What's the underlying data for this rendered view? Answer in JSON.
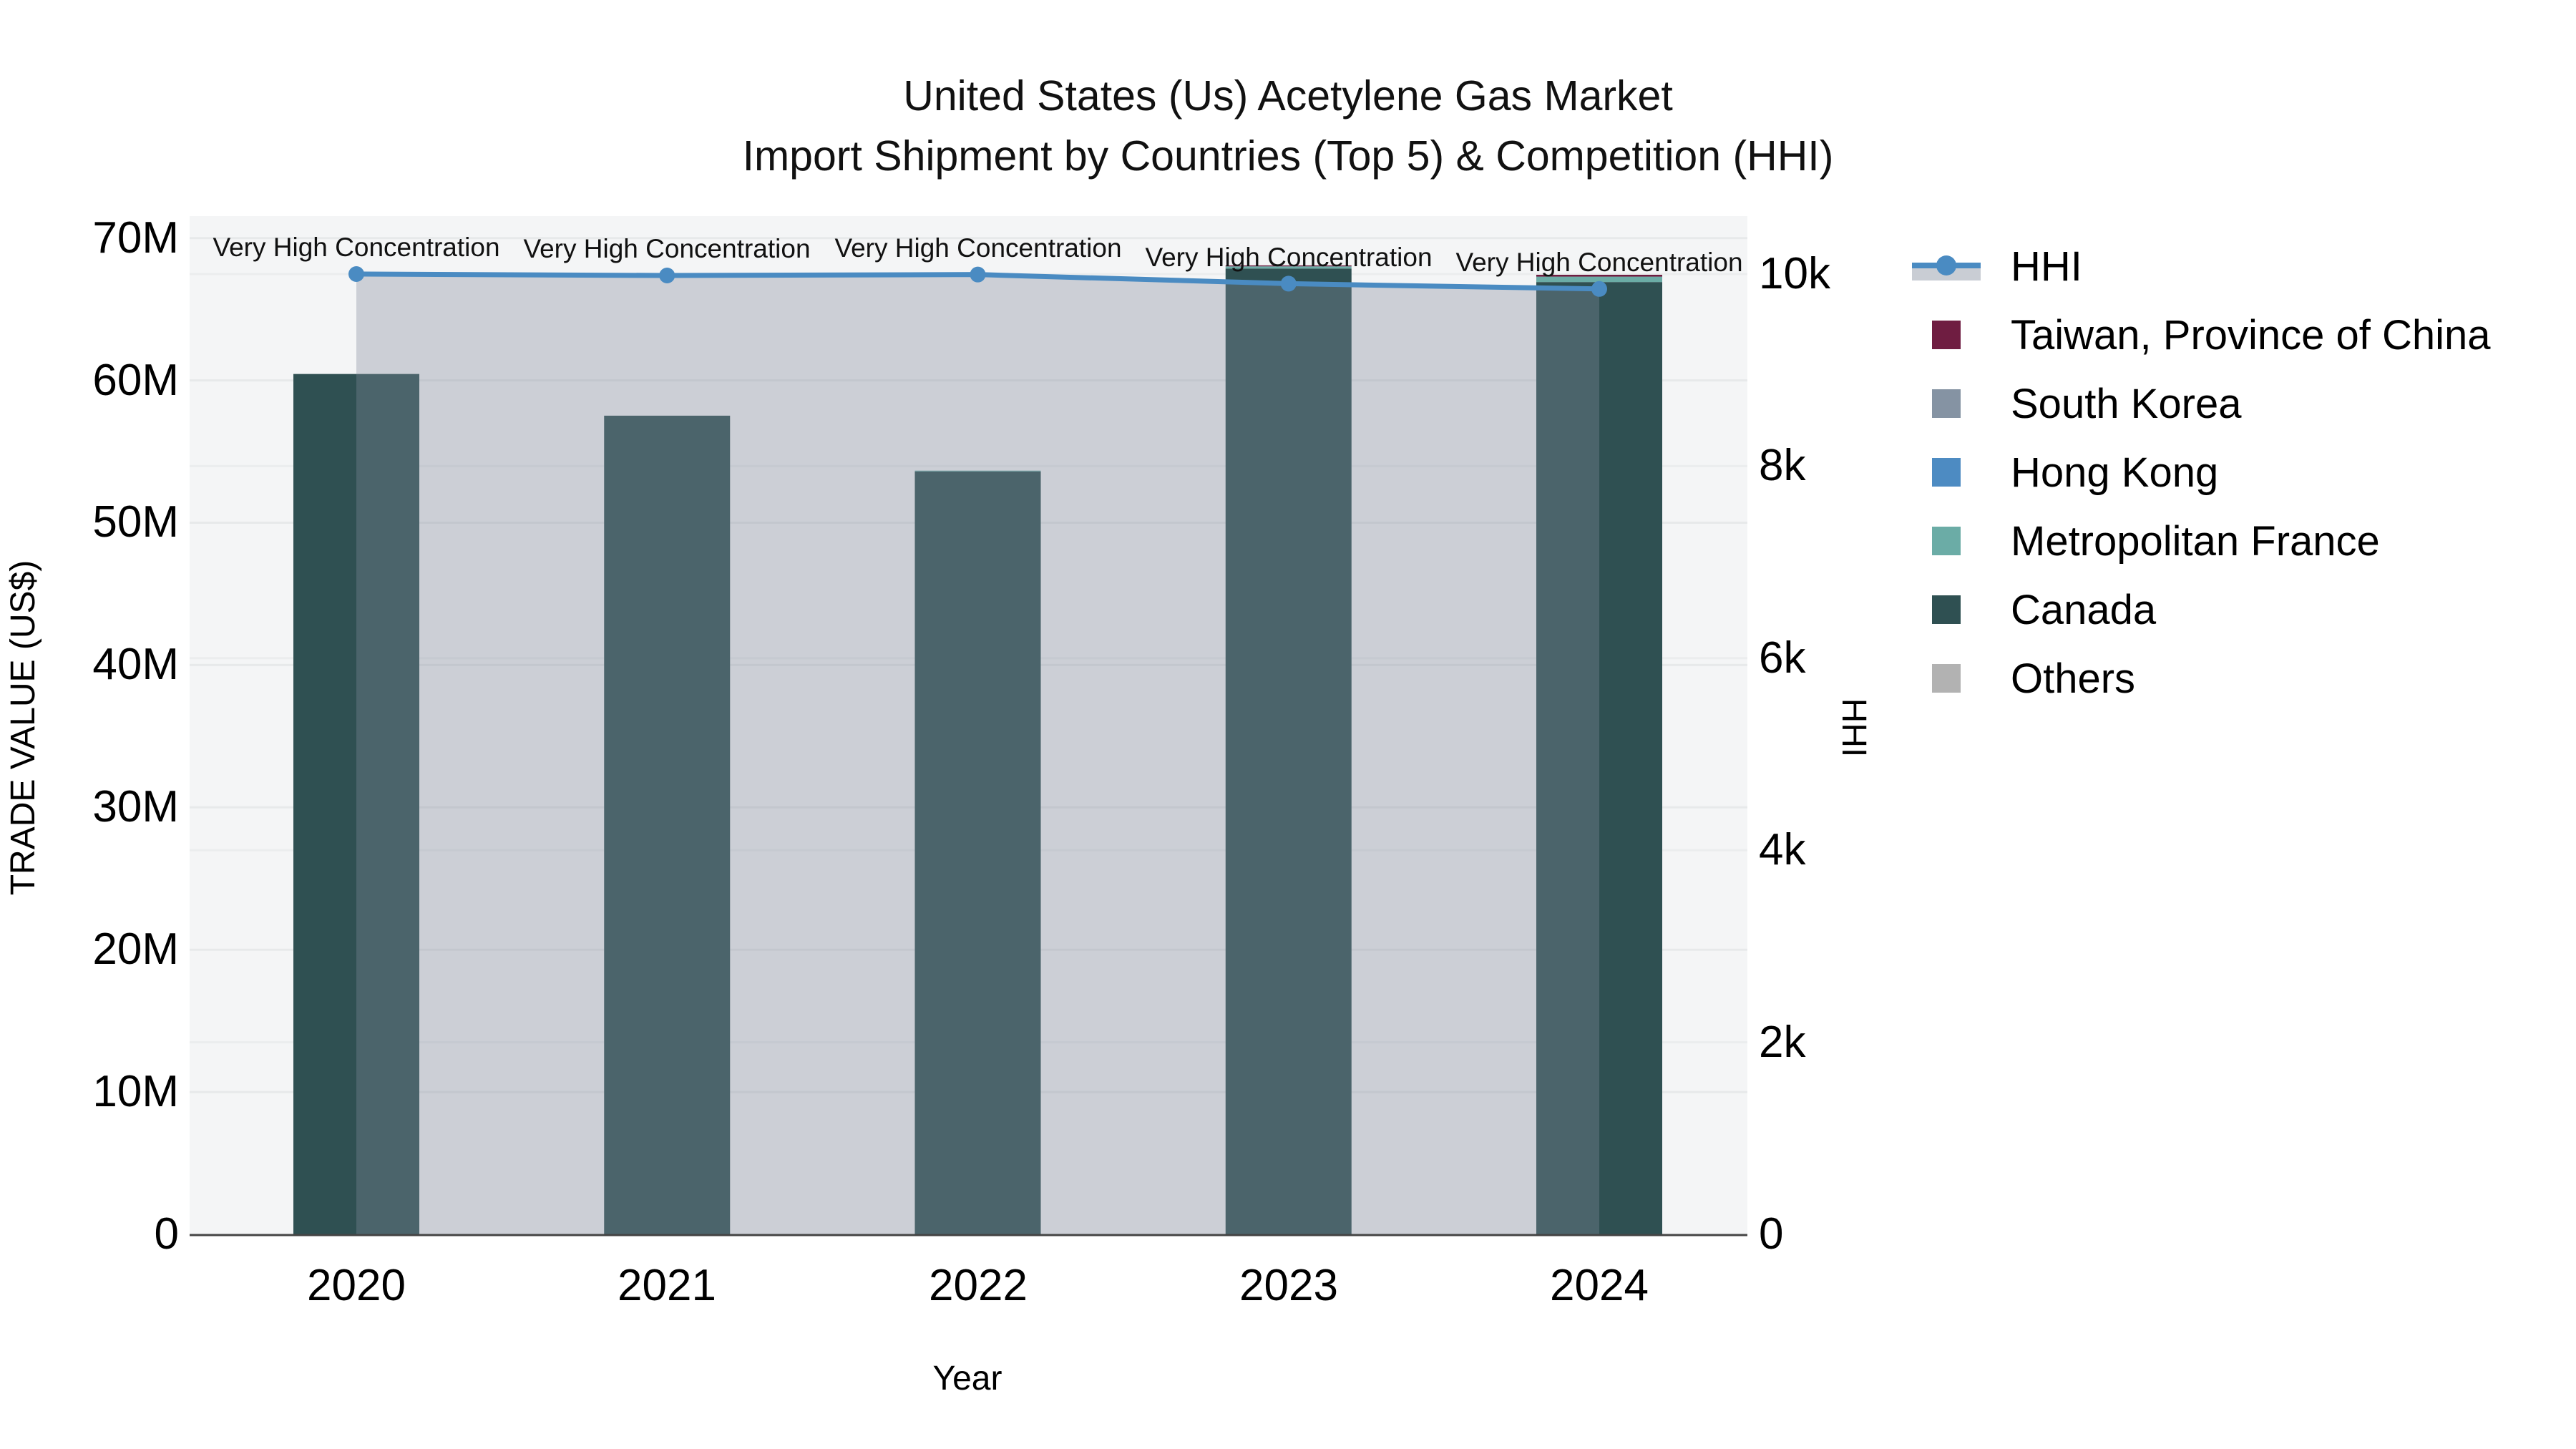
{
  "title": {
    "line1": "United States (Us) Acetylene Gas Market",
    "line2": "Import Shipment by Countries (Top 5) & Competition (HHI)"
  },
  "chart_data": {
    "type": "bar+line",
    "categories": [
      "2020",
      "2021",
      "2022",
      "2023",
      "2024"
    ],
    "xlabel": "Year",
    "ylabel_left": "TRADE VALUE (US$)",
    "ylabel_right": "HHI",
    "yaxis_left": {
      "tick_labels": [
        "0",
        "10M",
        "20M",
        "30M",
        "40M",
        "50M",
        "60M",
        "70M"
      ],
      "tick_values": [
        0,
        10000000,
        20000000,
        30000000,
        40000000,
        50000000,
        60000000,
        70000000
      ],
      "range": [
        0,
        71500000
      ]
    },
    "yaxis_right": {
      "tick_labels": [
        "0",
        "2k",
        "4k",
        "6k",
        "8k",
        "10k"
      ],
      "tick_values": [
        0,
        2000,
        4000,
        6000,
        8000,
        10000
      ],
      "range": [
        0,
        10600
      ]
    },
    "series": [
      {
        "name": "Taiwan, Province of China",
        "color": "#6F1D41",
        "values": [
          0,
          0,
          0,
          70000,
          130000
        ]
      },
      {
        "name": "South Korea",
        "color": "#8593A3",
        "values": [
          0,
          0,
          0,
          0,
          0
        ]
      },
      {
        "name": "Hong Kong",
        "color": "#4D8BC2",
        "values": [
          0,
          0,
          0,
          0,
          0
        ]
      },
      {
        "name": "Metropolitan France",
        "color": "#6BACA6",
        "values": [
          0,
          0,
          60000,
          150000,
          380000
        ]
      },
      {
        "name": "Canada",
        "color": "#2F5052",
        "values": [
          60450000,
          57520000,
          53600000,
          67860000,
          66910000
        ]
      },
      {
        "name": "Others",
        "color": "#B2B2B2",
        "values": [
          0,
          0,
          0,
          0,
          0
        ]
      }
    ],
    "hhi": {
      "name": "HHI",
      "color": "#4A8BC2",
      "fillcolor": "rgba(128,138,155,0.35)",
      "legend_fill": "#C9CDD4",
      "values": [
        10000,
        9985,
        9995,
        9900,
        9845
      ]
    },
    "annotations": [
      "Very High Concentration",
      "Very High Concentration",
      "Very High Concentration",
      "Very High Concentration",
      "Very High Concentration"
    ],
    "style": {
      "plot_background": "#F4F5F6",
      "page_background": "#FFFFFF",
      "grid_color": "#E7E9EA",
      "grid_color_right": "#EBEDEE",
      "axis_line_color": "#444444"
    },
    "legend_position": "right",
    "grid": true
  },
  "legend": {
    "items": [
      {
        "label": "HHI",
        "color": "#4A8BC2",
        "type": "line"
      },
      {
        "label": "Taiwan, Province of China",
        "color": "#6F1D41",
        "type": "square"
      },
      {
        "label": "South Korea",
        "color": "#8593A3",
        "type": "square"
      },
      {
        "label": "Hong Kong",
        "color": "#4D8BC2",
        "type": "square"
      },
      {
        "label": "Metropolitan France",
        "color": "#6BACA6",
        "type": "square"
      },
      {
        "label": "Canada",
        "color": "#2F5052",
        "type": "square"
      },
      {
        "label": "Others",
        "color": "#B2B2B2",
        "type": "square"
      }
    ]
  }
}
